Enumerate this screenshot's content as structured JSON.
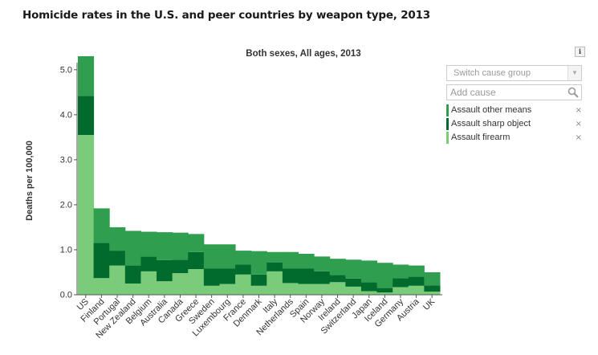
{
  "page_title": "Homicide rates in the U.S. and peer countries by weapon type, 2013",
  "controls": {
    "info_label": "i",
    "switch_placeholder": "Switch cause group",
    "add_cause_placeholder": "Add cause",
    "remove_symbol": "×"
  },
  "legend": [
    {
      "label": "Assault other means",
      "color": "#2f9e4f"
    },
    {
      "label": "Assault sharp object",
      "color": "#006b2c"
    },
    {
      "label": "Assault firearm",
      "color": "#7acc7a"
    }
  ],
  "chart_data": {
    "type": "bar",
    "stacked": true,
    "title": "Both sexes, All ages, 2013",
    "xlabel": "",
    "ylabel": "Deaths per 100,000",
    "ylim": [
      0,
      5.3
    ],
    "yticks": [
      "0.0",
      "1.0",
      "2.0",
      "3.0",
      "4.0",
      "5.0"
    ],
    "categories": [
      "US",
      "Finland",
      "Portugal",
      "New Zealand",
      "Belgium",
      "Australia",
      "Canada",
      "Greece",
      "Sweden",
      "Luxembourg",
      "France",
      "Denmark",
      "Italy",
      "Netherlands",
      "Spain",
      "Norway",
      "Ireland",
      "Switzerland",
      "Japan",
      "Iceland",
      "Germany",
      "Austria",
      "UK"
    ],
    "series": [
      {
        "name": "Assault firearm",
        "color": "#7acc7a",
        "values": [
          3.55,
          0.37,
          0.65,
          0.25,
          0.52,
          0.3,
          0.48,
          0.57,
          0.2,
          0.24,
          0.45,
          0.2,
          0.52,
          0.26,
          0.24,
          0.24,
          0.28,
          0.18,
          0.08,
          0.05,
          0.17,
          0.2,
          0.07
        ]
      },
      {
        "name": "Assault sharp object",
        "color": "#006b2c",
        "values": [
          0.87,
          0.78,
          0.33,
          0.4,
          0.33,
          0.47,
          0.3,
          0.38,
          0.38,
          0.34,
          0.22,
          0.25,
          0.2,
          0.32,
          0.34,
          0.28,
          0.16,
          0.18,
          0.2,
          0.1,
          0.2,
          0.2,
          0.14
        ]
      },
      {
        "name": "Assault other means",
        "color": "#2f9e4f",
        "values": [
          0.88,
          0.77,
          0.52,
          0.77,
          0.55,
          0.62,
          0.6,
          0.4,
          0.54,
          0.54,
          0.31,
          0.52,
          0.23,
          0.37,
          0.33,
          0.33,
          0.36,
          0.42,
          0.48,
          0.56,
          0.3,
          0.25,
          0.29
        ]
      }
    ]
  }
}
